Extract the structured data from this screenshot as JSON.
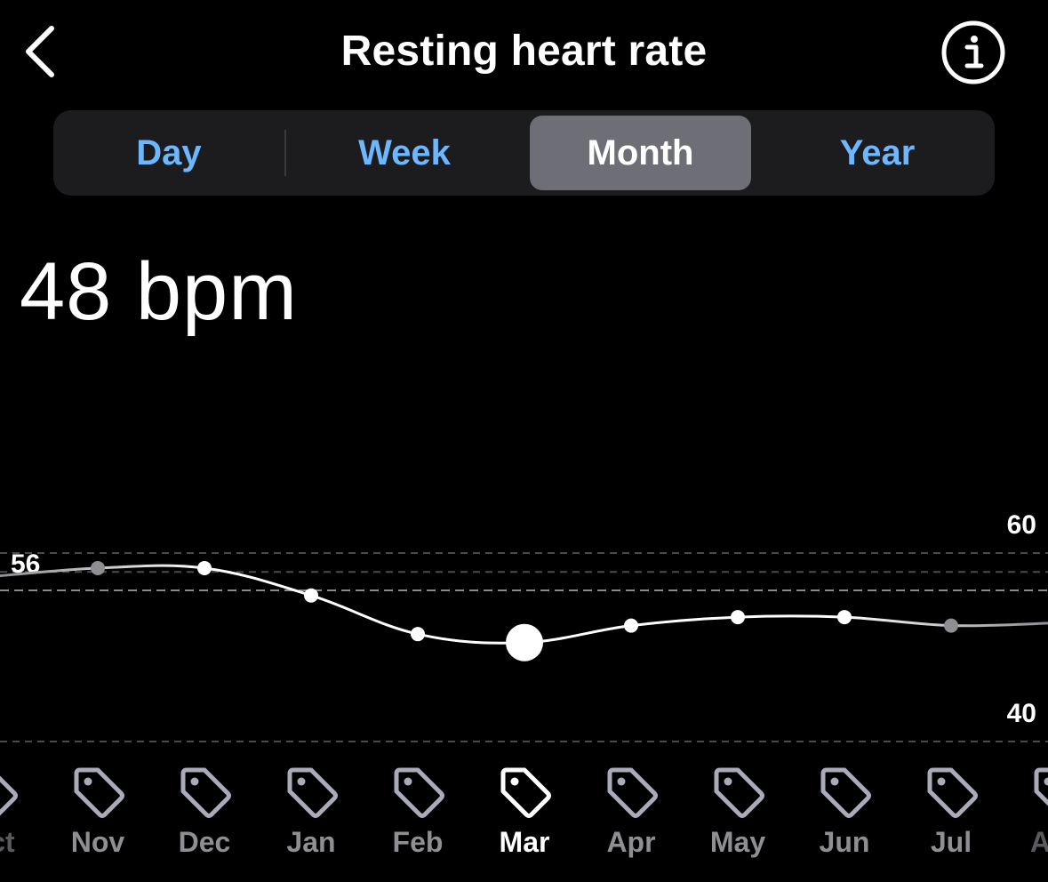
{
  "header": {
    "title": "Resting heart rate",
    "back_icon": "chevron-left-icon",
    "info_icon": "info-icon"
  },
  "tabs": [
    {
      "label": "Day",
      "active": false
    },
    {
      "label": "Week",
      "active": false
    },
    {
      "label": "Month",
      "active": true
    },
    {
      "label": "Year",
      "active": false
    }
  ],
  "summary": {
    "value": "48 bpm"
  },
  "colors": {
    "background": "#000000",
    "tab_text": "#6cb7ff",
    "tab_active_bg": "#6e6f76",
    "tag_icon": "#a9acb8",
    "line": "#ffffff",
    "faded": "#8e8e93"
  },
  "chart_data": {
    "type": "line",
    "title": "",
    "xlabel": "",
    "ylabel": "",
    "axis_labels": [
      "60",
      "40"
    ],
    "reference_label": "56",
    "reference_value": 56,
    "ylim": [
      40,
      60
    ],
    "gridlines": [
      40,
      58,
      60
    ],
    "categories": [
      "Oct",
      "Nov",
      "Dec",
      "Jan",
      "Feb",
      "Mar",
      "Apr",
      "May",
      "Jun",
      "Jul",
      "Aug"
    ],
    "selected": "Mar",
    "series": [
      {
        "values": [
          57.5,
          58.4,
          58.4,
          55.5,
          51.4,
          50.5,
          52.3,
          53.2,
          53.2,
          52.3,
          52.6
        ]
      }
    ],
    "month_icon": "tag-icon"
  }
}
